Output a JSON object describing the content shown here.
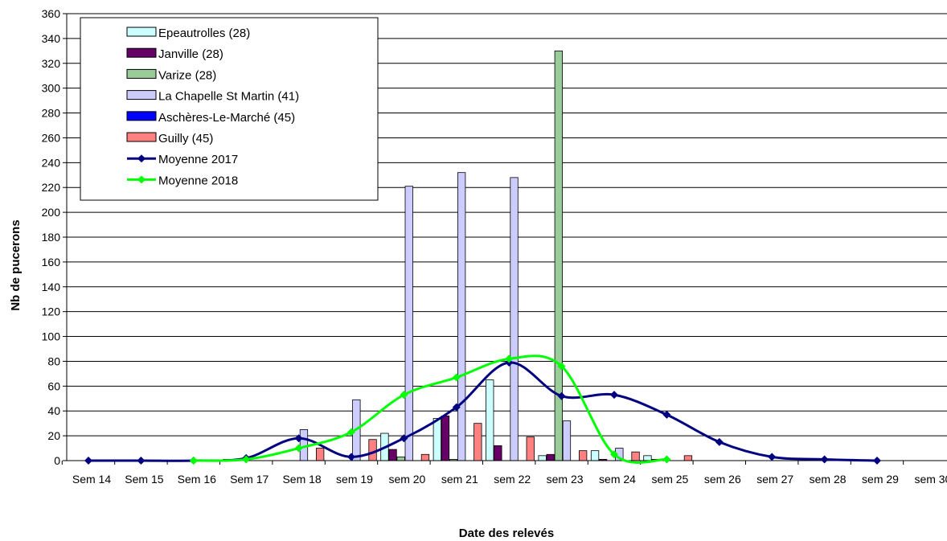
{
  "chart_data": {
    "type": "bar",
    "title": "",
    "xlabel": "Date des relevés",
    "ylabel": "Nb de pucerons",
    "ylim": [
      0,
      360
    ],
    "yticks": [
      0,
      20,
      40,
      60,
      80,
      100,
      120,
      140,
      160,
      180,
      200,
      220,
      240,
      260,
      280,
      300,
      320,
      340,
      360
    ],
    "grid": true,
    "legend_position": "top-left",
    "categories": [
      "Sem 14",
      "Sem 15",
      "Sem 16",
      "Sem 17",
      "Sem 18",
      "sem 19",
      "sem 20",
      "sem 21",
      "sem 22",
      "sem 23",
      "sem 24",
      "sem 25",
      "sem 26",
      "sem 27",
      "sem 28",
      "sem 29",
      "sem 30"
    ],
    "series": [
      {
        "name": "Epeautrolles (28)",
        "kind": "bar",
        "color": "#ccffff",
        "values": [
          0,
          0,
          0,
          1,
          0,
          0,
          22,
          34,
          65,
          4,
          8,
          4,
          0,
          0,
          0,
          0,
          0
        ]
      },
      {
        "name": "Janville (28)",
        "kind": "bar",
        "color": "#660066",
        "values": [
          0,
          0,
          0,
          1,
          0,
          0,
          9,
          36,
          12,
          5,
          1,
          1,
          0,
          0,
          0,
          0,
          0
        ]
      },
      {
        "name": "Varize (28)",
        "kind": "bar",
        "color": "#99cc99",
        "values": [
          0,
          0,
          0,
          0,
          0,
          0,
          3,
          1,
          0,
          330,
          0,
          0,
          0,
          0,
          0,
          0,
          0
        ]
      },
      {
        "name": "La Chapelle St Martin (41)",
        "kind": "bar",
        "color": "#ccccff",
        "values": [
          0,
          0,
          0,
          0,
          25,
          49,
          221,
          232,
          228,
          32,
          10,
          0,
          0,
          0,
          0,
          0,
          0
        ]
      },
      {
        "name": "Aschères-Le-Marché (45)",
        "kind": "bar",
        "color": "#0000ff",
        "values": [
          0,
          0,
          0,
          0,
          0,
          0,
          0,
          0,
          0,
          0,
          0,
          0,
          0,
          0,
          0,
          0,
          0
        ]
      },
      {
        "name": "Guilly (45)",
        "kind": "bar",
        "color": "#ff8080",
        "values": [
          0,
          0,
          0,
          0,
          10,
          17,
          5,
          30,
          19,
          8,
          7,
          4,
          0,
          0,
          0,
          0,
          0
        ]
      },
      {
        "name": "Moyenne 2017",
        "kind": "line",
        "color": "#000080",
        "values": [
          0,
          0,
          0,
          2,
          18,
          3,
          18,
          43,
          79,
          52,
          53,
          37,
          15,
          3,
          1,
          0,
          null
        ]
      },
      {
        "name": "Moyenne 2018",
        "kind": "line",
        "color": "#00ff00",
        "values": [
          null,
          null,
          0,
          1,
          10,
          23,
          53,
          67,
          82,
          76,
          5,
          1,
          null,
          null,
          null,
          null,
          null
        ]
      }
    ]
  }
}
